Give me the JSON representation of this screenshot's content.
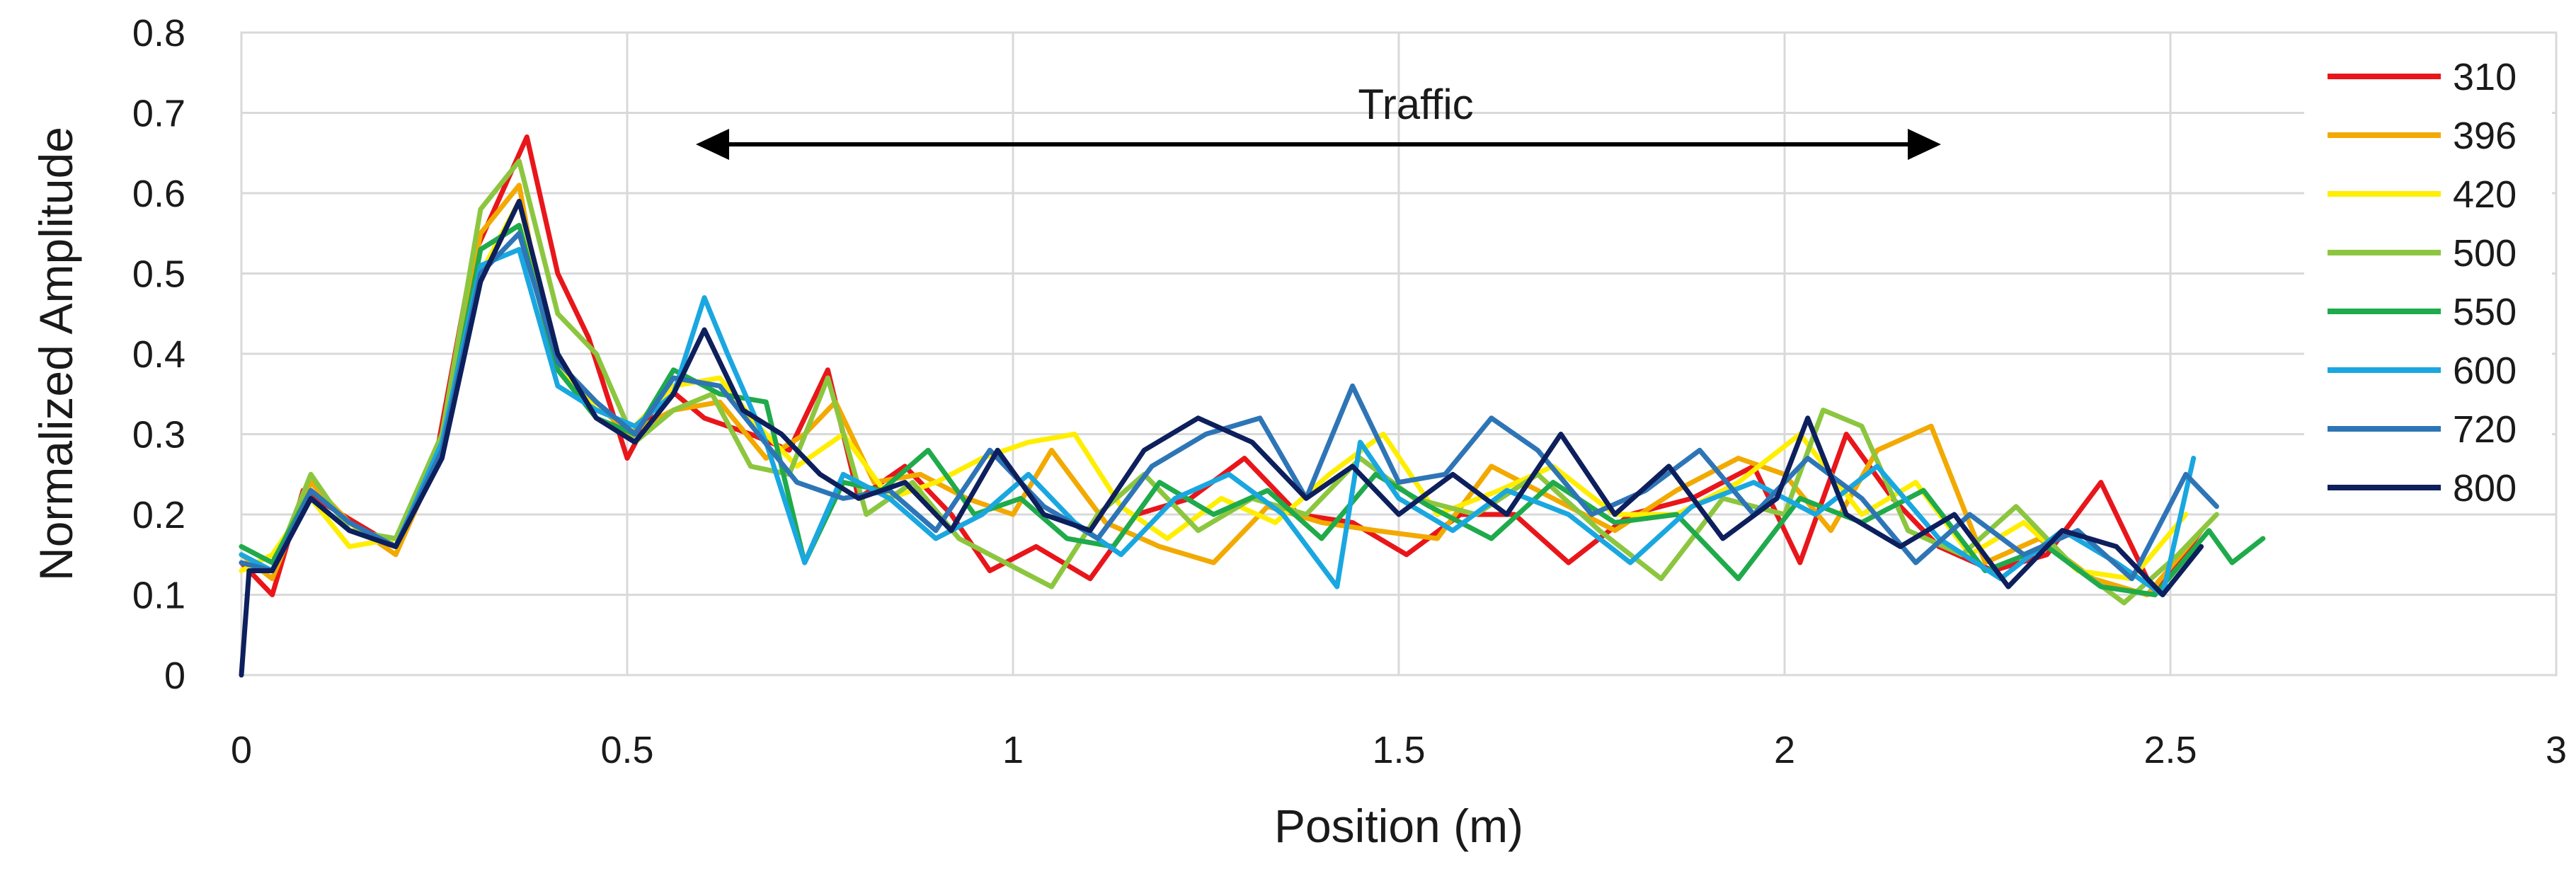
{
  "chart_data": {
    "type": "line",
    "xlabel": "Position (m)",
    "ylabel": "Normalized Amplitude",
    "xlim": [
      0,
      3
    ],
    "ylim": [
      0,
      0.8
    ],
    "x_ticks": [
      "0",
      "0.5",
      "1",
      "1.5",
      "2",
      "2.5",
      "3"
    ],
    "y_ticks": [
      "0",
      "0.1",
      "0.2",
      "0.3",
      "0.4",
      "0.5",
      "0.6",
      "0.7",
      "0.8"
    ],
    "grid": true,
    "legend_position": "right",
    "annotation": {
      "text": "Traffic",
      "x_range": [
        0.59,
        2.2
      ],
      "y": 0.66
    },
    "series": [
      {
        "name": "310",
        "color": "#e8161b",
        "x": [
          0,
          0.04,
          0.08,
          0.13,
          0.2,
          0.25,
          0.3,
          0.37,
          0.41,
          0.45,
          0.5,
          0.55,
          0.6,
          0.66,
          0.71,
          0.76,
          0.8,
          0.86,
          0.92,
          0.97,
          1.03,
          1.1,
          1.16,
          1.23,
          1.3,
          1.37,
          1.44,
          1.51,
          1.58,
          1.65,
          1.72,
          1.8,
          1.88,
          1.96,
          2.02,
          2.08,
          2.14,
          2.2,
          2.27,
          2.34,
          2.41,
          2.48,
          2.54
        ],
        "y": [
          0.14,
          0.1,
          0.23,
          0.2,
          0.16,
          0.26,
          0.52,
          0.67,
          0.5,
          0.42,
          0.27,
          0.36,
          0.32,
          0.3,
          0.28,
          0.38,
          0.22,
          0.26,
          0.2,
          0.13,
          0.16,
          0.12,
          0.2,
          0.22,
          0.27,
          0.2,
          0.19,
          0.15,
          0.2,
          0.2,
          0.14,
          0.2,
          0.22,
          0.26,
          0.14,
          0.3,
          0.22,
          0.16,
          0.13,
          0.15,
          0.24,
          0.1,
          0.18
        ]
      },
      {
        "name": "396",
        "color": "#f2a900",
        "x": [
          0,
          0.04,
          0.09,
          0.14,
          0.2,
          0.26,
          0.31,
          0.36,
          0.4,
          0.45,
          0.5,
          0.56,
          0.62,
          0.68,
          0.73,
          0.77,
          0.82,
          0.88,
          0.94,
          1.0,
          1.05,
          1.12,
          1.19,
          1.26,
          1.33,
          1.4,
          1.47,
          1.55,
          1.62,
          1.7,
          1.78,
          1.86,
          1.94,
          2.0,
          2.06,
          2.12,
          2.19,
          2.26,
          2.33,
          2.4,
          2.47,
          2.54
        ],
        "y": [
          0.15,
          0.12,
          0.24,
          0.19,
          0.15,
          0.28,
          0.55,
          0.61,
          0.4,
          0.35,
          0.3,
          0.33,
          0.34,
          0.27,
          0.3,
          0.34,
          0.24,
          0.25,
          0.22,
          0.2,
          0.28,
          0.19,
          0.16,
          0.14,
          0.21,
          0.19,
          0.18,
          0.17,
          0.26,
          0.22,
          0.18,
          0.23,
          0.27,
          0.25,
          0.18,
          0.28,
          0.31,
          0.14,
          0.17,
          0.12,
          0.1,
          0.18
        ]
      },
      {
        "name": "420",
        "color": "#ffee00",
        "x": [
          0,
          0.04,
          0.09,
          0.14,
          0.2,
          0.26,
          0.31,
          0.36,
          0.41,
          0.46,
          0.51,
          0.56,
          0.62,
          0.67,
          0.72,
          0.78,
          0.84,
          0.9,
          0.96,
          1.02,
          1.08,
          1.14,
          1.2,
          1.27,
          1.34,
          1.41,
          1.48,
          1.55,
          1.63,
          1.7,
          1.78,
          1.86,
          1.94,
          2.02,
          2.1,
          2.17,
          2.24,
          2.31,
          2.38,
          2.45,
          2.52
        ],
        "y": [
          0.13,
          0.15,
          0.22,
          0.16,
          0.17,
          0.29,
          0.5,
          0.59,
          0.39,
          0.33,
          0.31,
          0.36,
          0.37,
          0.31,
          0.26,
          0.3,
          0.22,
          0.24,
          0.27,
          0.29,
          0.3,
          0.21,
          0.17,
          0.22,
          0.19,
          0.25,
          0.3,
          0.2,
          0.23,
          0.26,
          0.2,
          0.2,
          0.24,
          0.3,
          0.2,
          0.24,
          0.15,
          0.19,
          0.13,
          0.12,
          0.2
        ]
      },
      {
        "name": "500",
        "color": "#8cc63f",
        "x": [
          0,
          0.04,
          0.09,
          0.14,
          0.2,
          0.26,
          0.31,
          0.36,
          0.41,
          0.46,
          0.51,
          0.56,
          0.61,
          0.66,
          0.71,
          0.76,
          0.81,
          0.87,
          0.93,
          0.99,
          1.05,
          1.11,
          1.17,
          1.24,
          1.31,
          1.38,
          1.45,
          1.52,
          1.6,
          1.68,
          1.76,
          1.84,
          1.92,
          2.0,
          2.05,
          2.1,
          2.16,
          2.23,
          2.3,
          2.37,
          2.44,
          2.51,
          2.56
        ],
        "y": [
          0.14,
          0.13,
          0.25,
          0.18,
          0.17,
          0.3,
          0.58,
          0.64,
          0.45,
          0.4,
          0.29,
          0.33,
          0.35,
          0.26,
          0.25,
          0.37,
          0.2,
          0.24,
          0.17,
          0.14,
          0.11,
          0.2,
          0.25,
          0.18,
          0.22,
          0.2,
          0.27,
          0.22,
          0.2,
          0.25,
          0.18,
          0.12,
          0.22,
          0.2,
          0.33,
          0.31,
          0.18,
          0.15,
          0.21,
          0.14,
          0.09,
          0.15,
          0.2
        ]
      },
      {
        "name": "550",
        "color": "#1faa4b",
        "x": [
          0,
          0.04,
          0.09,
          0.14,
          0.2,
          0.26,
          0.31,
          0.36,
          0.41,
          0.46,
          0.51,
          0.56,
          0.62,
          0.68,
          0.73,
          0.78,
          0.83,
          0.89,
          0.95,
          1.01,
          1.07,
          1.13,
          1.19,
          1.26,
          1.33,
          1.4,
          1.47,
          1.54,
          1.62,
          1.7,
          1.78,
          1.86,
          1.94,
          2.02,
          2.1,
          2.18,
          2.26,
          2.34,
          2.41,
          2.48,
          2.55,
          2.58,
          2.62
        ],
        "y": [
          0.16,
          0.14,
          0.23,
          0.19,
          0.16,
          0.28,
          0.53,
          0.56,
          0.38,
          0.32,
          0.3,
          0.38,
          0.35,
          0.34,
          0.14,
          0.24,
          0.23,
          0.28,
          0.2,
          0.22,
          0.17,
          0.16,
          0.24,
          0.2,
          0.23,
          0.17,
          0.25,
          0.21,
          0.17,
          0.24,
          0.19,
          0.2,
          0.12,
          0.22,
          0.19,
          0.23,
          0.13,
          0.16,
          0.11,
          0.1,
          0.18,
          0.14,
          0.17
        ]
      },
      {
        "name": "600",
        "color": "#1aa7e0",
        "x": [
          0,
          0.04,
          0.09,
          0.14,
          0.2,
          0.26,
          0.31,
          0.36,
          0.41,
          0.46,
          0.51,
          0.56,
          0.6,
          0.63,
          0.68,
          0.73,
          0.78,
          0.84,
          0.9,
          0.96,
          1.02,
          1.08,
          1.14,
          1.21,
          1.28,
          1.35,
          1.42,
          1.45,
          1.5,
          1.57,
          1.64,
          1.72,
          1.8,
          1.88,
          1.96,
          2.04,
          2.12,
          2.2,
          2.28,
          2.36,
          2.43,
          2.49,
          2.53
        ],
        "y": [
          0.15,
          0.13,
          0.22,
          0.18,
          0.16,
          0.29,
          0.51,
          0.53,
          0.36,
          0.33,
          0.31,
          0.35,
          0.47,
          0.4,
          0.29,
          0.14,
          0.25,
          0.22,
          0.17,
          0.2,
          0.25,
          0.19,
          0.15,
          0.22,
          0.25,
          0.2,
          0.11,
          0.29,
          0.22,
          0.18,
          0.23,
          0.2,
          0.14,
          0.21,
          0.24,
          0.2,
          0.26,
          0.17,
          0.12,
          0.18,
          0.14,
          0.1,
          0.27
        ]
      },
      {
        "name": "720",
        "color": "#2e75b6",
        "x": [
          0,
          0.04,
          0.09,
          0.14,
          0.2,
          0.26,
          0.31,
          0.36,
          0.41,
          0.46,
          0.51,
          0.56,
          0.62,
          0.67,
          0.72,
          0.78,
          0.84,
          0.9,
          0.97,
          1.04,
          1.11,
          1.18,
          1.25,
          1.32,
          1.38,
          1.44,
          1.5,
          1.56,
          1.62,
          1.68,
          1.75,
          1.82,
          1.89,
          1.96,
          2.03,
          2.1,
          2.17,
          2.24,
          2.31,
          2.38,
          2.45,
          2.52,
          2.56
        ],
        "y": [
          0.14,
          0.13,
          0.23,
          0.19,
          0.16,
          0.28,
          0.5,
          0.55,
          0.39,
          0.34,
          0.3,
          0.37,
          0.36,
          0.3,
          0.24,
          0.22,
          0.23,
          0.18,
          0.28,
          0.21,
          0.17,
          0.26,
          0.3,
          0.32,
          0.22,
          0.36,
          0.24,
          0.25,
          0.32,
          0.28,
          0.2,
          0.23,
          0.28,
          0.2,
          0.27,
          0.22,
          0.14,
          0.2,
          0.15,
          0.18,
          0.12,
          0.25,
          0.21
        ]
      },
      {
        "name": "800",
        "color": "#0d1f5c",
        "x": [
          0,
          0.01,
          0.04,
          0.09,
          0.14,
          0.2,
          0.26,
          0.31,
          0.36,
          0.41,
          0.46,
          0.51,
          0.56,
          0.6,
          0.65,
          0.7,
          0.75,
          0.8,
          0.86,
          0.92,
          0.98,
          1.04,
          1.1,
          1.17,
          1.24,
          1.31,
          1.38,
          1.44,
          1.5,
          1.57,
          1.64,
          1.71,
          1.78,
          1.85,
          1.92,
          1.99,
          2.03,
          2.08,
          2.15,
          2.22,
          2.29,
          2.36,
          2.43,
          2.49,
          2.54
        ],
        "y": [
          0,
          0.13,
          0.13,
          0.22,
          0.18,
          0.16,
          0.27,
          0.49,
          0.59,
          0.4,
          0.32,
          0.29,
          0.35,
          0.43,
          0.33,
          0.3,
          0.25,
          0.22,
          0.24,
          0.18,
          0.28,
          0.2,
          0.18,
          0.28,
          0.32,
          0.29,
          0.22,
          0.26,
          0.2,
          0.25,
          0.2,
          0.3,
          0.2,
          0.26,
          0.17,
          0.22,
          0.32,
          0.2,
          0.16,
          0.2,
          0.11,
          0.18,
          0.16,
          0.1,
          0.16
        ]
      }
    ]
  }
}
